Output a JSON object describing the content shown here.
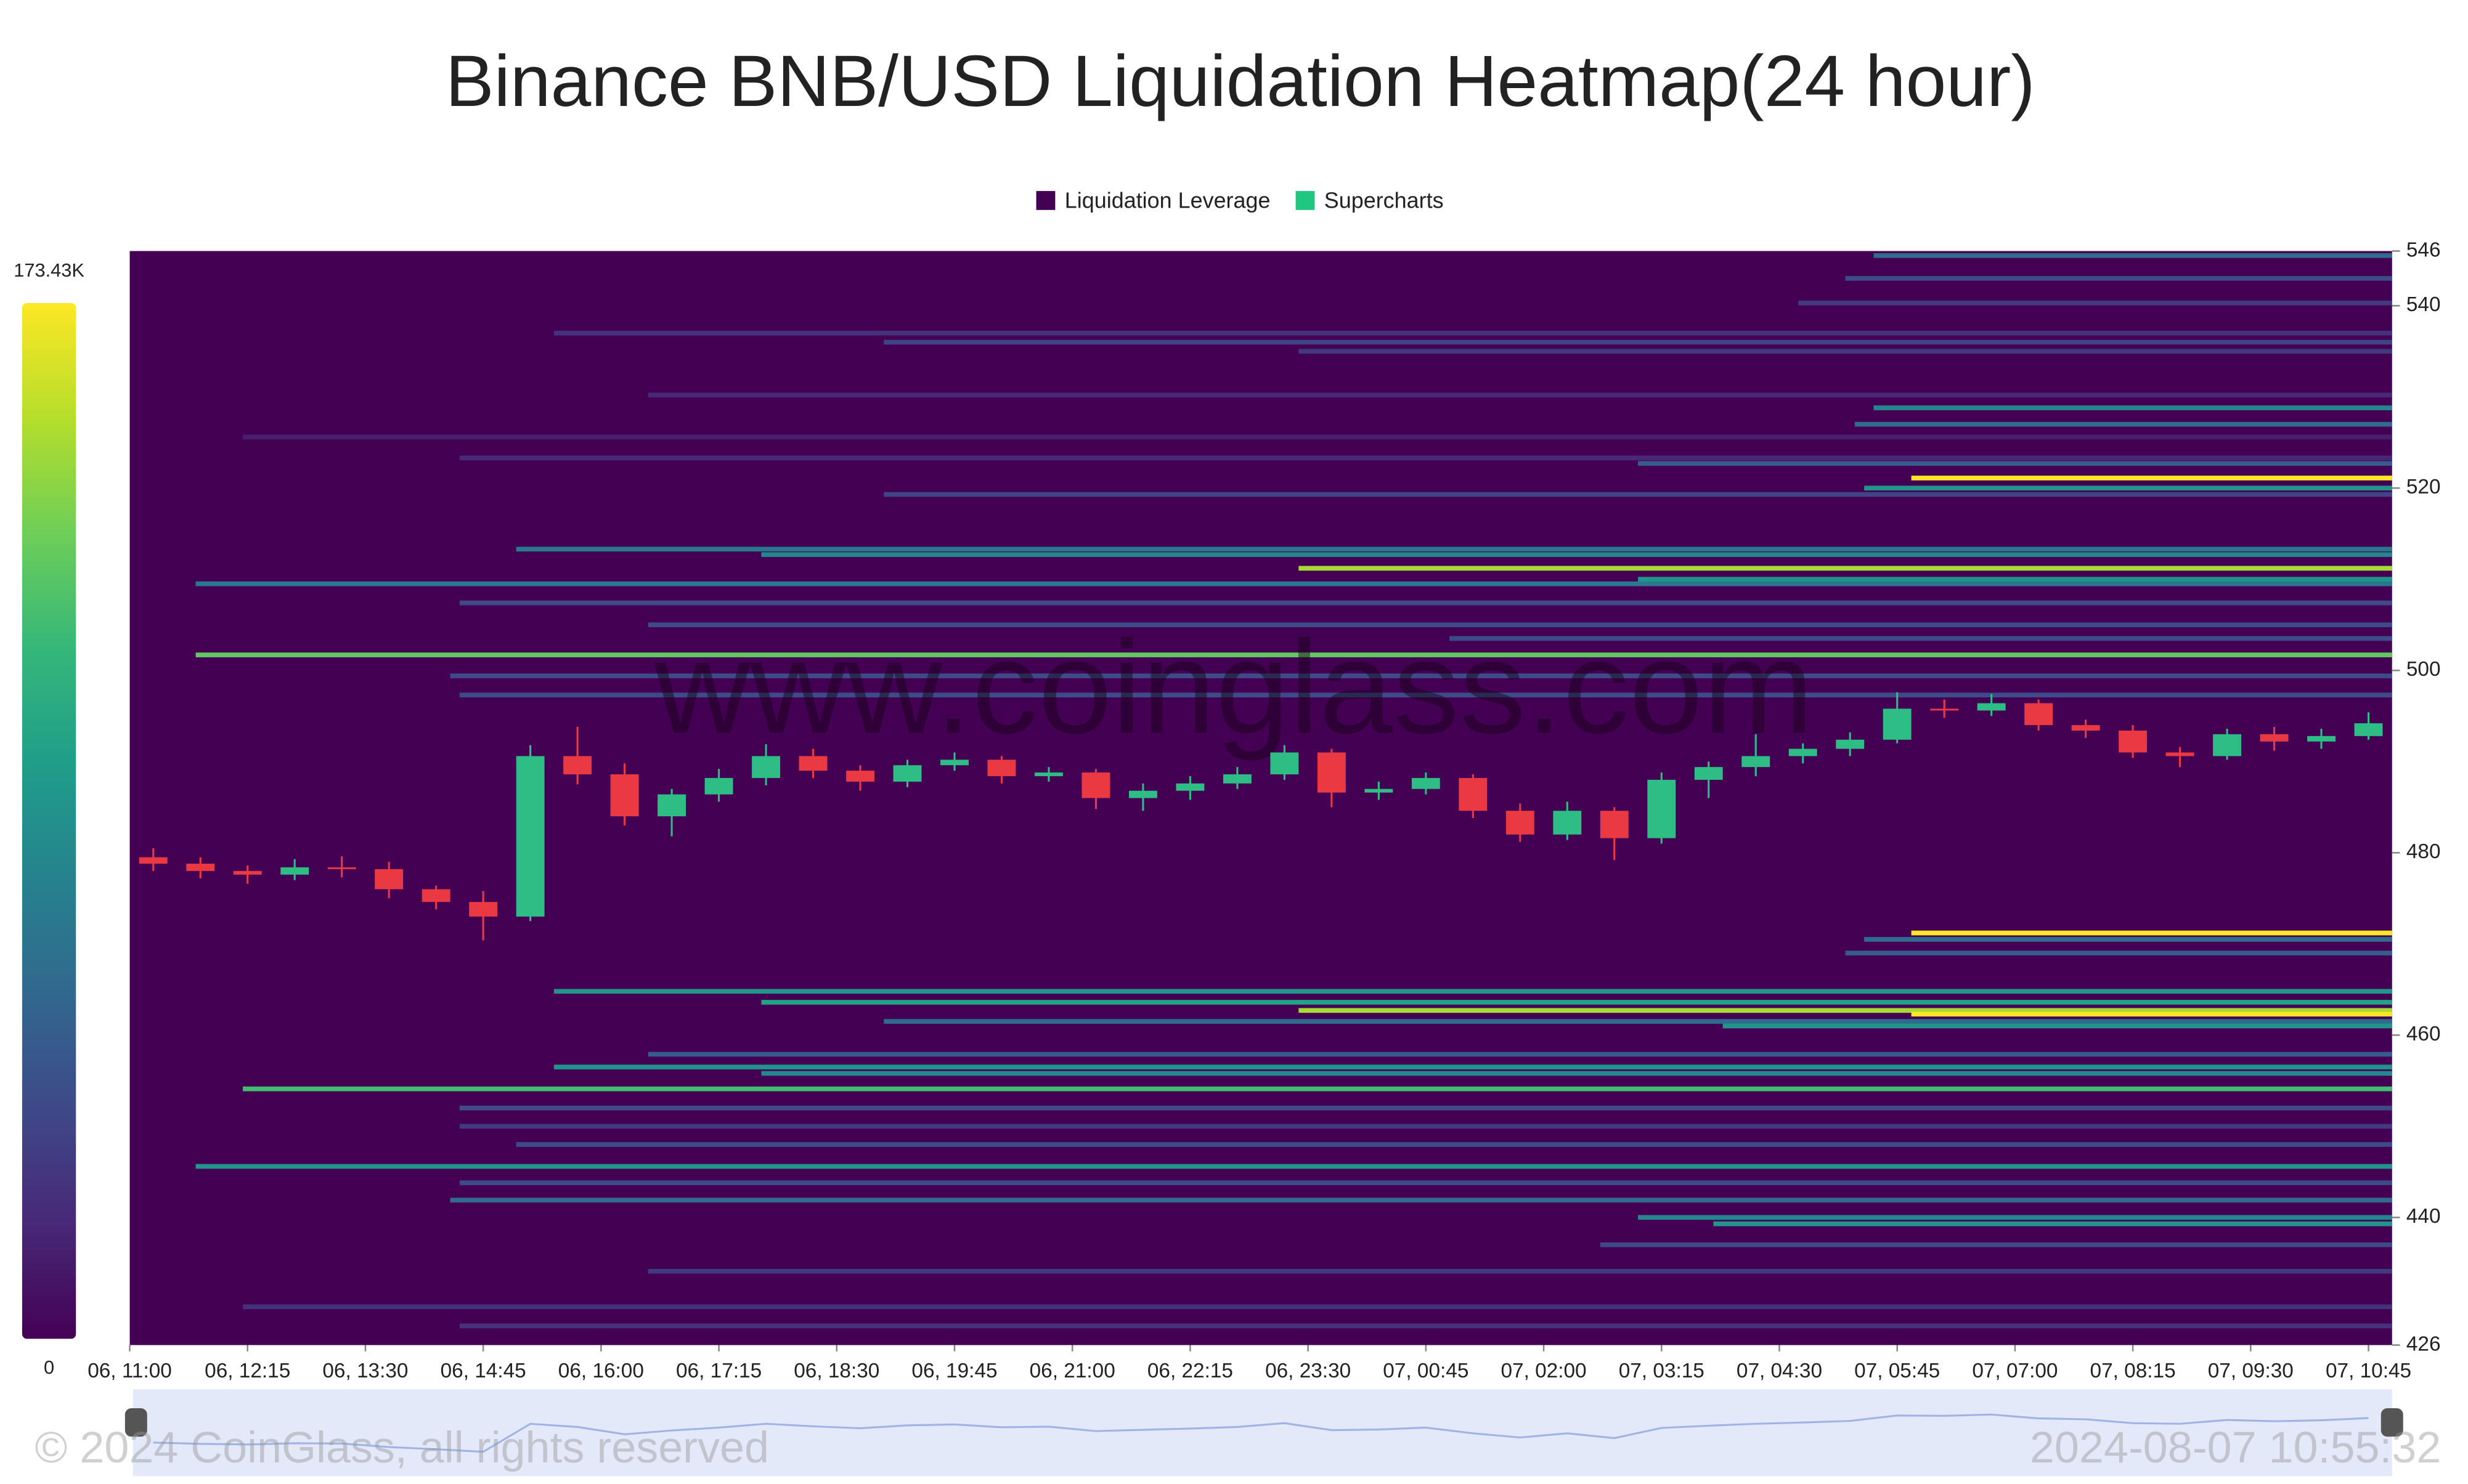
{
  "chart_data": {
    "type": "heatmap",
    "title": "Binance BNB/USD Liquidation Heatmap(24 hour)",
    "legend": [
      {
        "name": "Liquidation Leverage",
        "color": "#440154"
      },
      {
        "name": "Supercharts",
        "color": "#20c77f"
      }
    ],
    "watermark": "www.coinglass.com",
    "copyright": "© 2024 CoinGlass, all rights reserved",
    "timestamp": "2024-08-07 10:55:32",
    "xlim": [
      0,
      24
    ],
    "xticks": [
      {
        "value": 0,
        "label": "06, 11:00"
      },
      {
        "value": 1.25,
        "label": "06, 12:15"
      },
      {
        "value": 2.5,
        "label": "06, 13:30"
      },
      {
        "value": 3.75,
        "label": "06, 14:45"
      },
      {
        "value": 5,
        "label": "06, 16:00"
      },
      {
        "value": 6.25,
        "label": "06, 17:15"
      },
      {
        "value": 7.5,
        "label": "06, 18:30"
      },
      {
        "value": 8.75,
        "label": "06, 19:45"
      },
      {
        "value": 10,
        "label": "06, 21:00"
      },
      {
        "value": 11.25,
        "label": "06, 22:15"
      },
      {
        "value": 12.5,
        "label": "06, 23:30"
      },
      {
        "value": 13.75,
        "label": "07, 00:45"
      },
      {
        "value": 15,
        "label": "07, 02:00"
      },
      {
        "value": 16.25,
        "label": "07, 03:15"
      },
      {
        "value": 17.5,
        "label": "07, 04:30"
      },
      {
        "value": 18.75,
        "label": "07, 05:45"
      },
      {
        "value": 20,
        "label": "07, 07:00"
      },
      {
        "value": 21.25,
        "label": "07, 08:15"
      },
      {
        "value": 22.5,
        "label": "07, 09:30"
      },
      {
        "value": 23.75,
        "label": "07, 10:45"
      }
    ],
    "ylim": [
      426,
      546
    ],
    "yticks": [
      426,
      440,
      460,
      480,
      500,
      520,
      540,
      546
    ],
    "zlim": [
      0,
      173430
    ],
    "colorbar_ticks": [
      0,
      {
        "value": 173430,
        "label": "173.43K"
      }
    ],
    "colorscale": [
      "#440154",
      "#482878",
      "#3e4989",
      "#31688e",
      "#26828e",
      "#1f9e89",
      "#35b779",
      "#6ece58",
      "#b5de2b",
      "#fde725"
    ],
    "up_color": "#2ebd85",
    "down_color": "#ea3943",
    "bands": [
      {
        "price": 545.5,
        "start": 18.5,
        "value": 60000
      },
      {
        "price": 543,
        "start": 18.2,
        "value": 40000
      },
      {
        "price": 540.3,
        "start": 17.7,
        "value": 30000
      },
      {
        "price": 537,
        "start": 4.5,
        "value": 25000
      },
      {
        "price": 536,
        "start": 8,
        "value": 35000
      },
      {
        "price": 535,
        "start": 12.4,
        "value": 30000
      },
      {
        "price": 530.2,
        "start": 5.5,
        "value": 20000
      },
      {
        "price": 528.8,
        "start": 18.5,
        "value": 80000
      },
      {
        "price": 527,
        "start": 18.3,
        "value": 60000
      },
      {
        "price": 525.6,
        "start": 1.2,
        "value": 15000
      },
      {
        "price": 523.3,
        "start": 3.5,
        "value": 20000
      },
      {
        "price": 522.7,
        "start": 16,
        "value": 50000
      },
      {
        "price": 521.1,
        "start": 18.9,
        "value": 173000
      },
      {
        "price": 520,
        "start": 18.4,
        "value": 90000
      },
      {
        "price": 519.3,
        "start": 8,
        "value": 35000
      },
      {
        "price": 513.3,
        "start": 4.1,
        "value": 70000
      },
      {
        "price": 512.7,
        "start": 6.7,
        "value": 80000
      },
      {
        "price": 511.2,
        "start": 12.4,
        "value": 150000
      },
      {
        "price": 510,
        "start": 16,
        "value": 90000
      },
      {
        "price": 509.5,
        "start": 0.7,
        "value": 70000
      },
      {
        "price": 507.4,
        "start": 3.5,
        "value": 40000
      },
      {
        "price": 505,
        "start": 5.5,
        "value": 40000
      },
      {
        "price": 503.5,
        "start": 14,
        "value": 40000
      },
      {
        "price": 501.7,
        "start": 0.7,
        "value": 130000
      },
      {
        "price": 499.4,
        "start": 3.4,
        "value": 40000
      },
      {
        "price": 497.3,
        "start": 3.5,
        "value": 40000
      },
      {
        "price": 471.2,
        "start": 18.9,
        "value": 173000
      },
      {
        "price": 470.5,
        "start": 18.4,
        "value": 60000
      },
      {
        "price": 469,
        "start": 18.2,
        "value": 50000
      },
      {
        "price": 464.8,
        "start": 4.5,
        "value": 90000
      },
      {
        "price": 463.6,
        "start": 6.7,
        "value": 100000
      },
      {
        "price": 462.7,
        "start": 12.4,
        "value": 150000
      },
      {
        "price": 462.3,
        "start": 18.9,
        "value": 173000
      },
      {
        "price": 461.5,
        "start": 8,
        "value": 60000
      },
      {
        "price": 461,
        "start": 16.9,
        "value": 90000
      },
      {
        "price": 457.9,
        "start": 5.5,
        "value": 50000
      },
      {
        "price": 456.5,
        "start": 4.5,
        "value": 90000
      },
      {
        "price": 455.8,
        "start": 6.7,
        "value": 80000
      },
      {
        "price": 454.1,
        "start": 1.2,
        "value": 120000
      },
      {
        "price": 452,
        "start": 3.5,
        "value": 40000
      },
      {
        "price": 450,
        "start": 3.5,
        "value": 30000
      },
      {
        "price": 448,
        "start": 4.1,
        "value": 40000
      },
      {
        "price": 445.6,
        "start": 0.7,
        "value": 90000
      },
      {
        "price": 443.8,
        "start": 3.5,
        "value": 40000
      },
      {
        "price": 441.9,
        "start": 3.4,
        "value": 60000
      },
      {
        "price": 440,
        "start": 16,
        "value": 80000
      },
      {
        "price": 439.3,
        "start": 16.8,
        "value": 90000
      },
      {
        "price": 437,
        "start": 15.6,
        "value": 40000
      },
      {
        "price": 434.1,
        "start": 5.5,
        "value": 30000
      },
      {
        "price": 430.2,
        "start": 1.2,
        "value": 25000
      },
      {
        "price": 428.1,
        "start": 3.5,
        "value": 25000
      }
    ],
    "candles": {
      "x": [
        0.25,
        0.75,
        1.25,
        1.75,
        2.25,
        2.75,
        3.25,
        3.75,
        4.25,
        4.75,
        5.25,
        5.75,
        6.25,
        6.75,
        7.25,
        7.75,
        8.25,
        8.75,
        9.25,
        9.75,
        10.25,
        10.75,
        11.25,
        11.75,
        12.25,
        12.75,
        13.25,
        13.75,
        14.25,
        14.75,
        15.25,
        15.75,
        16.25,
        16.75,
        17.25,
        17.75,
        18.25,
        18.75,
        19.25,
        19.75,
        20.25,
        20.75,
        21.25,
        21.75,
        22.25,
        22.75,
        23.25,
        23.75
      ],
      "open": [
        479.5,
        478.8,
        478,
        477.6,
        478.4,
        478.2,
        476,
        474.6,
        473,
        490.6,
        488.6,
        484,
        486.4,
        488.2,
        490.6,
        489,
        487.8,
        489.6,
        490.2,
        488.4,
        488.8,
        486,
        486.8,
        487.6,
        488.6,
        491,
        486.6,
        487,
        488.2,
        484.6,
        482,
        484.6,
        481.6,
        488,
        489.4,
        490.6,
        491.4,
        492.4,
        495.8,
        495.6,
        496.4,
        494,
        493.4,
        491,
        490.6,
        493,
        492.2,
        492.8
      ],
      "high": [
        480.5,
        479.5,
        478.6,
        479.3,
        479.6,
        479,
        476.4,
        475.8,
        491.8,
        493.8,
        489.8,
        487,
        489.2,
        491.9,
        491.4,
        489.6,
        490.2,
        491,
        490.6,
        489.4,
        489.2,
        487.6,
        488.4,
        489.4,
        491.8,
        491.4,
        487.8,
        488.8,
        488.6,
        485.4,
        485.6,
        485,
        488.8,
        490,
        493,
        492,
        493.2,
        497.6,
        496.8,
        497.4,
        496.8,
        494.6,
        494,
        491.6,
        493.6,
        493.8,
        493.6,
        495.4
      ],
      "low": [
        478,
        477.2,
        476.6,
        477,
        477.3,
        475,
        473.8,
        470.4,
        472.5,
        487.5,
        483,
        481.8,
        485.6,
        487.4,
        488.2,
        486.8,
        487.2,
        489,
        487.6,
        487.8,
        484.8,
        484.6,
        485.8,
        487,
        488,
        485,
        485.8,
        486.4,
        483.8,
        481.2,
        481.4,
        479.2,
        481,
        486,
        488.4,
        489.8,
        490.6,
        492,
        494.8,
        495,
        493.4,
        492.6,
        490.4,
        489.4,
        490.2,
        491.2,
        491.4,
        492.4
      ],
      "close": [
        478.8,
        478,
        477.6,
        478.4,
        478.2,
        476,
        474.6,
        473,
        490.6,
        488.6,
        484,
        486.4,
        488.2,
        490.6,
        489,
        487.8,
        489.6,
        490.2,
        488.4,
        488.8,
        486,
        486.8,
        487.6,
        488.6,
        491,
        486.6,
        487,
        488.2,
        484.6,
        482,
        484.6,
        481.6,
        488,
        489.4,
        490.6,
        491.4,
        492.4,
        495.8,
        495.6,
        496.4,
        494,
        493.4,
        491,
        490.6,
        493,
        492.2,
        492.8,
        494.2
      ]
    }
  }
}
